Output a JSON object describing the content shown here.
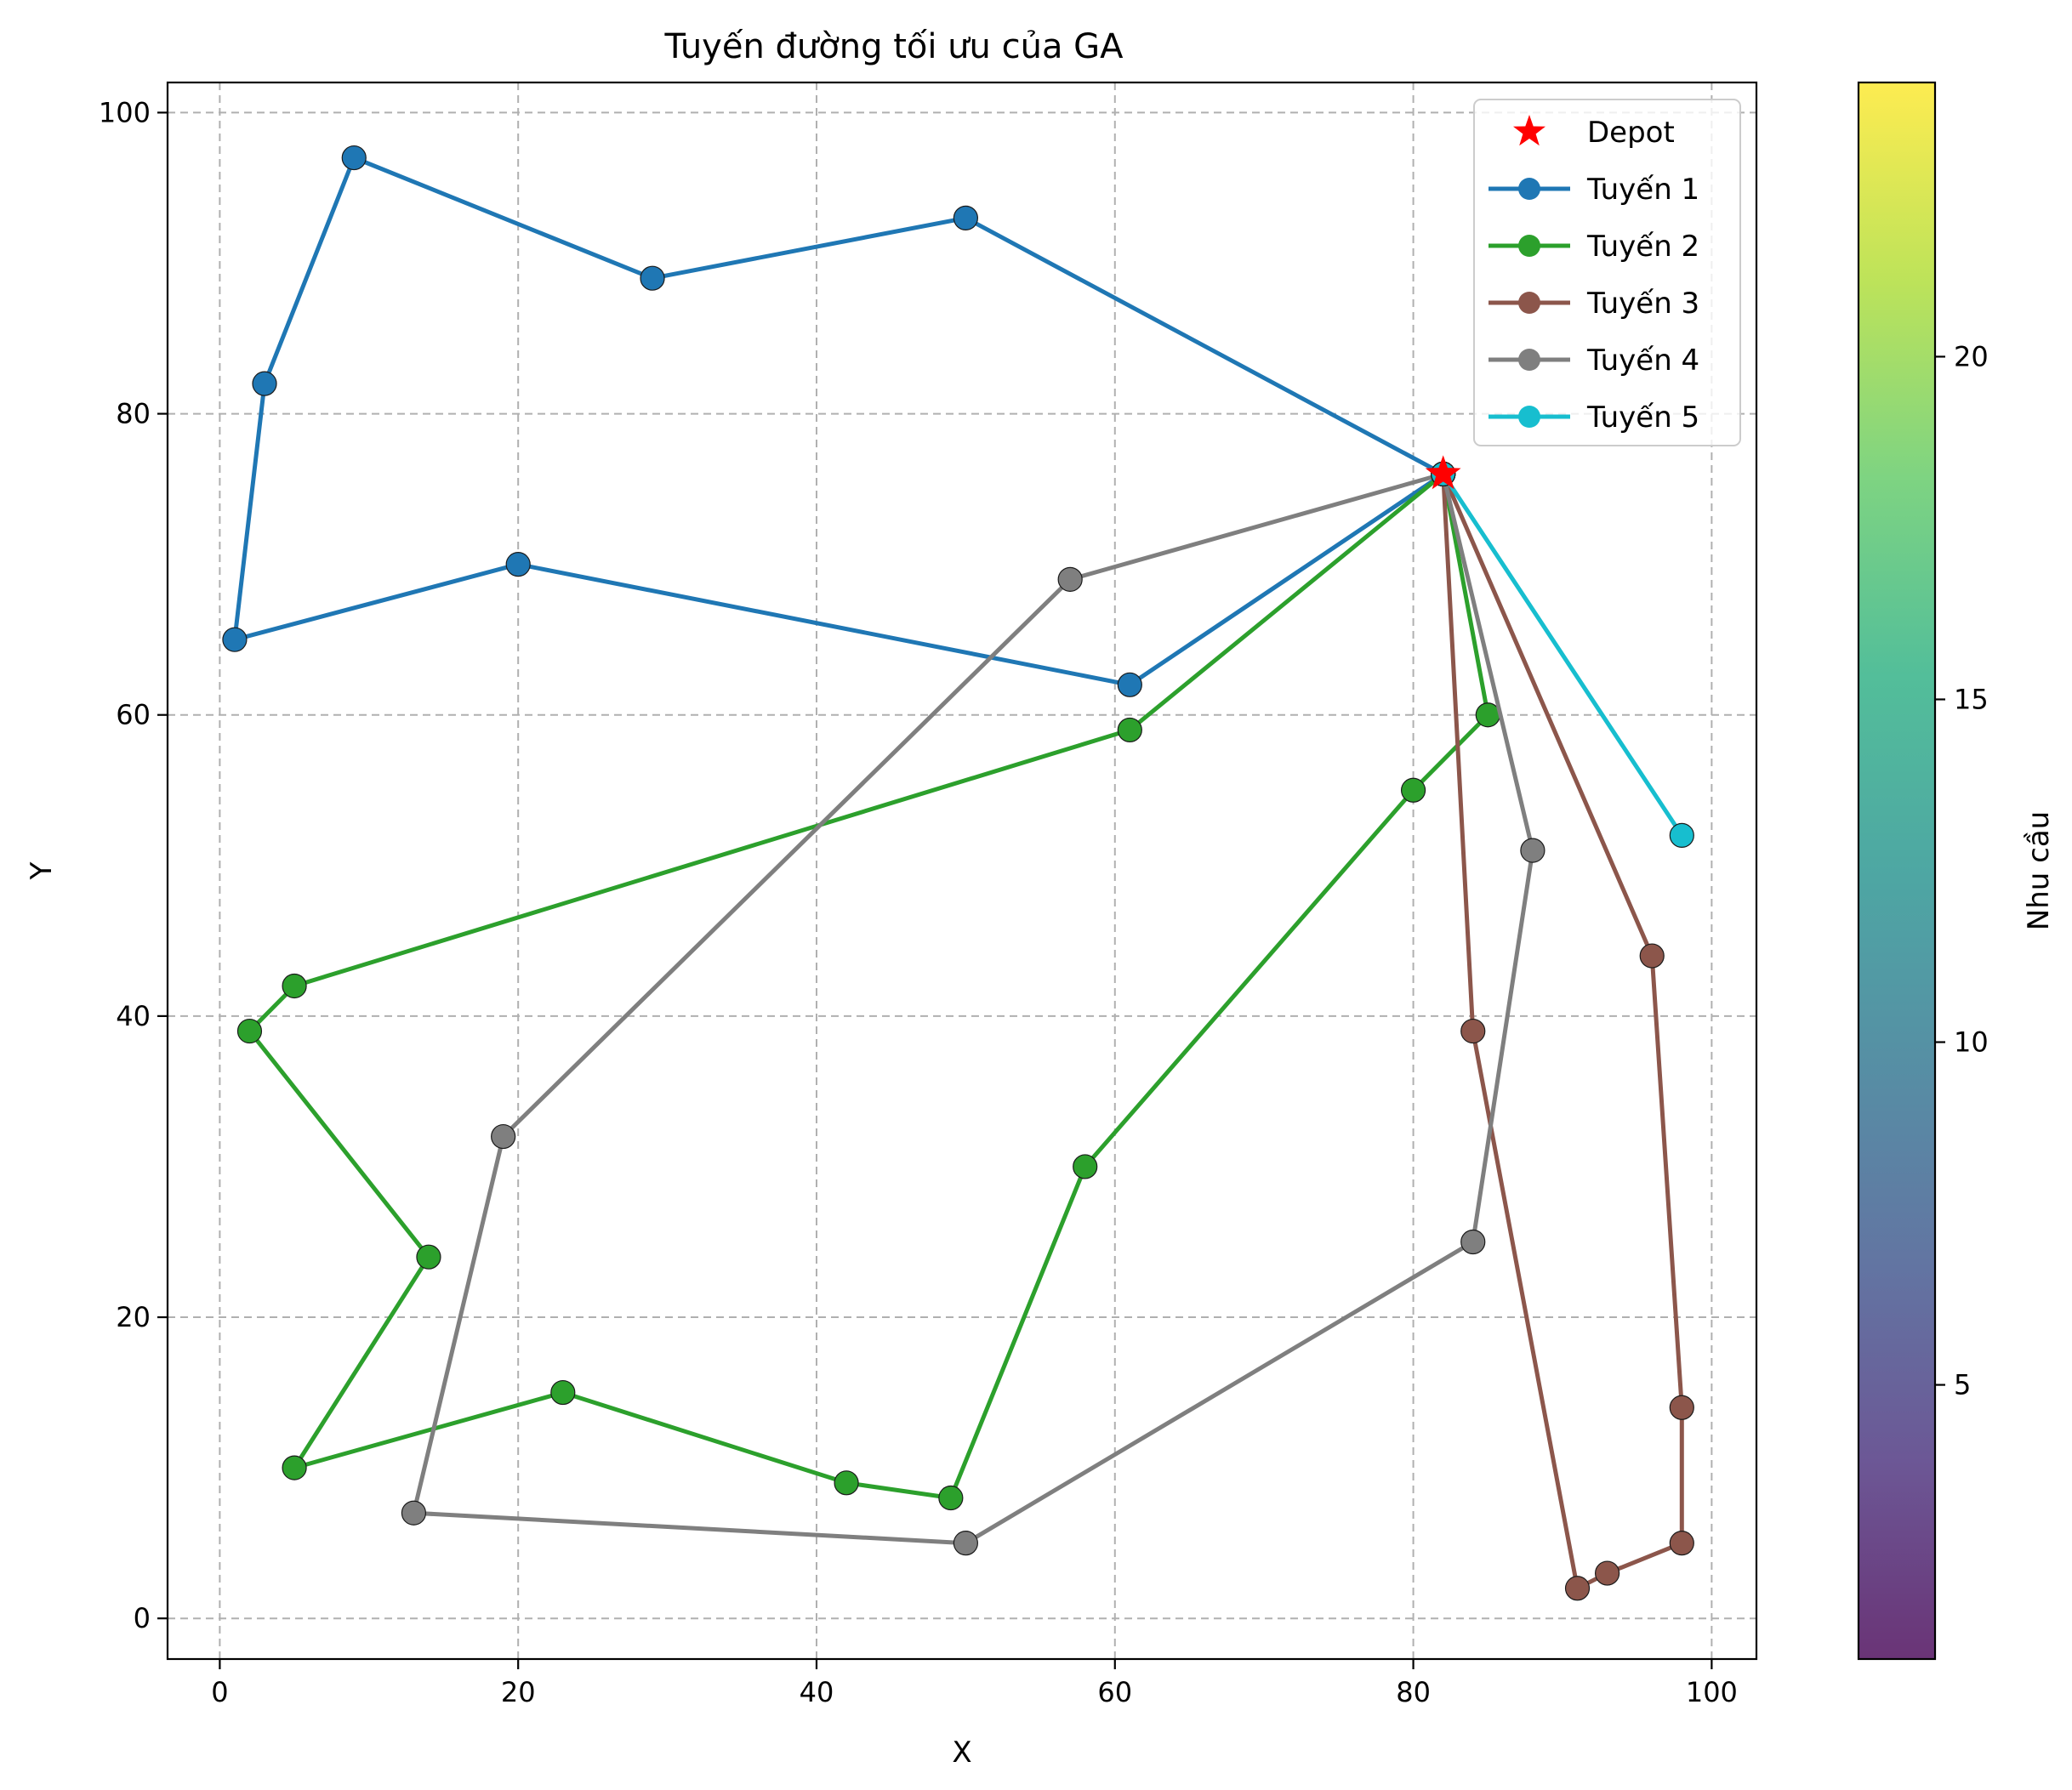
{
  "chart_data": {
    "type": "line",
    "title": "Tuyến đường tối ưu của GA",
    "xlabel": "X",
    "ylabel": "Y",
    "xlim": [
      -3.5,
      103
    ],
    "ylim": [
      -2.7,
      102
    ],
    "xticks": [
      0,
      20,
      40,
      60,
      80,
      100
    ],
    "yticks": [
      0,
      20,
      40,
      60,
      80,
      100
    ],
    "grid": true,
    "legend_position": "top-right",
    "depot": {
      "name": "Depot",
      "x": 82,
      "y": 76,
      "color": "#ff0000",
      "marker": "star"
    },
    "series": [
      {
        "name": "Tuyến 1",
        "color": "#1f77b4",
        "points": [
          [
            82,
            76
          ],
          [
            50,
            93
          ],
          [
            29,
            89
          ],
          [
            9,
            97
          ],
          [
            3,
            82
          ],
          [
            1,
            65
          ],
          [
            20,
            70
          ],
          [
            61,
            62
          ],
          [
            82,
            76
          ]
        ]
      },
      {
        "name": "Tuyến 2",
        "color": "#2ca02c",
        "points": [
          [
            82,
            76
          ],
          [
            85,
            60
          ],
          [
            80,
            55
          ],
          [
            58,
            30
          ],
          [
            49,
            8
          ],
          [
            42,
            9
          ],
          [
            23,
            15
          ],
          [
            5,
            10
          ],
          [
            14,
            24
          ],
          [
            2,
            39
          ],
          [
            5,
            42
          ],
          [
            61,
            59
          ],
          [
            82,
            76
          ]
        ]
      },
      {
        "name": "Tuyến 3",
        "color": "#8c564b",
        "points": [
          [
            82,
            76
          ],
          [
            84,
            39
          ],
          [
            91,
            2
          ],
          [
            93,
            3
          ],
          [
            98,
            5
          ],
          [
            98,
            14
          ],
          [
            96,
            44
          ],
          [
            82,
            76
          ]
        ]
      },
      {
        "name": "Tuyến 4",
        "color": "#7f7f7f",
        "points": [
          [
            82,
            76
          ],
          [
            88,
            51
          ],
          [
            84,
            25
          ],
          [
            50,
            5
          ],
          [
            13,
            7
          ],
          [
            19,
            32
          ],
          [
            57,
            69
          ],
          [
            82,
            76
          ]
        ]
      },
      {
        "name": "Tuyến 5",
        "color": "#17becf",
        "points": [
          [
            82,
            76
          ],
          [
            98,
            52
          ],
          [
            82,
            76
          ]
        ]
      }
    ],
    "colorbar": {
      "label": "Nhu cầu",
      "colormap": "viridis",
      "range": [
        1,
        24
      ],
      "ticks": [
        5,
        10,
        15,
        20
      ]
    }
  }
}
